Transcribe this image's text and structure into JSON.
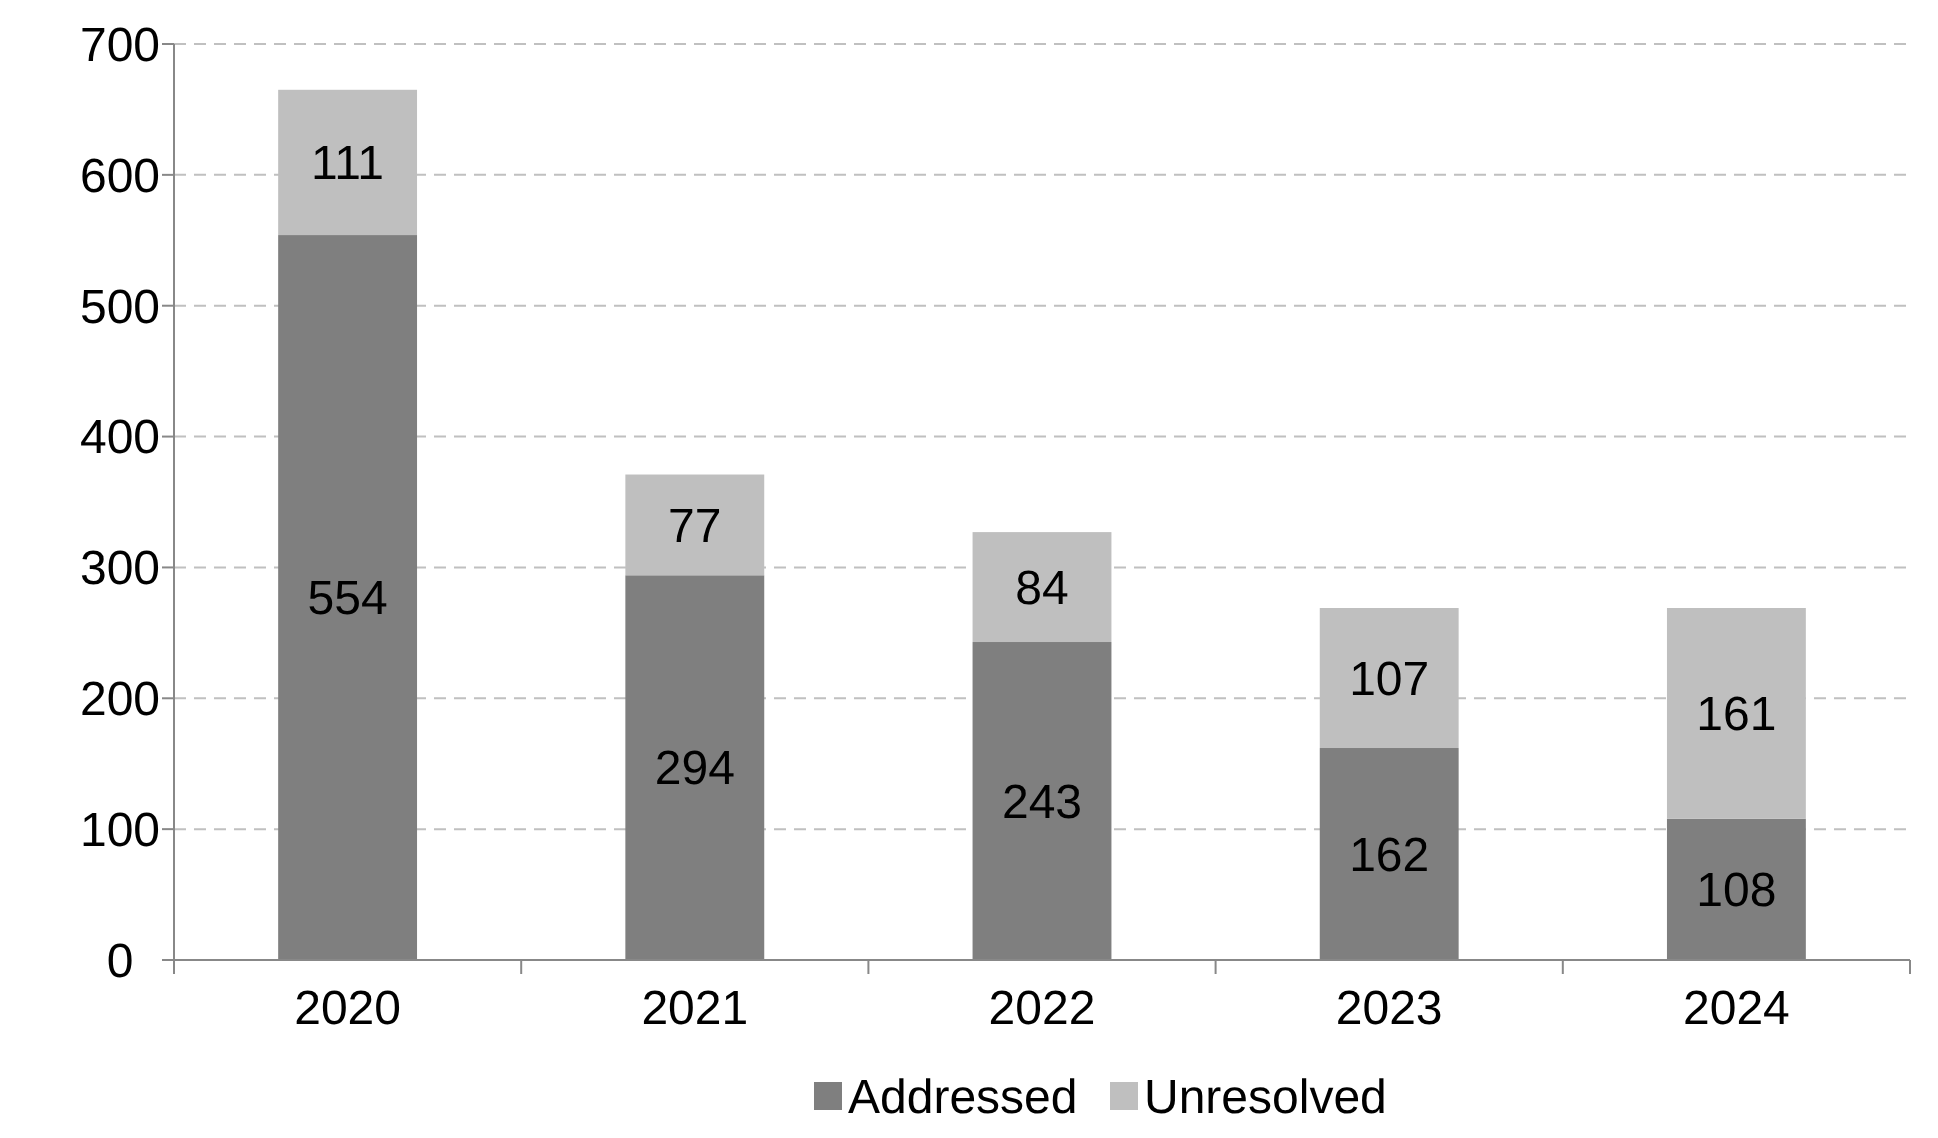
{
  "chart_data": {
    "type": "bar",
    "stacked": true,
    "categories": [
      "2020",
      "2021",
      "2022",
      "2023",
      "2024"
    ],
    "series": [
      {
        "name": "Addressed",
        "color": "#7f7f7f",
        "values": [
          554,
          294,
          243,
          162,
          108
        ]
      },
      {
        "name": "Unresolved",
        "color": "#bfbfbf",
        "values": [
          111,
          77,
          84,
          107,
          161
        ]
      }
    ],
    "ylim": [
      0,
      700
    ],
    "yticks": [
      0,
      100,
      200,
      300,
      400,
      500,
      600,
      700
    ],
    "grid": "y",
    "legend": "bottom",
    "data_labels": true
  }
}
